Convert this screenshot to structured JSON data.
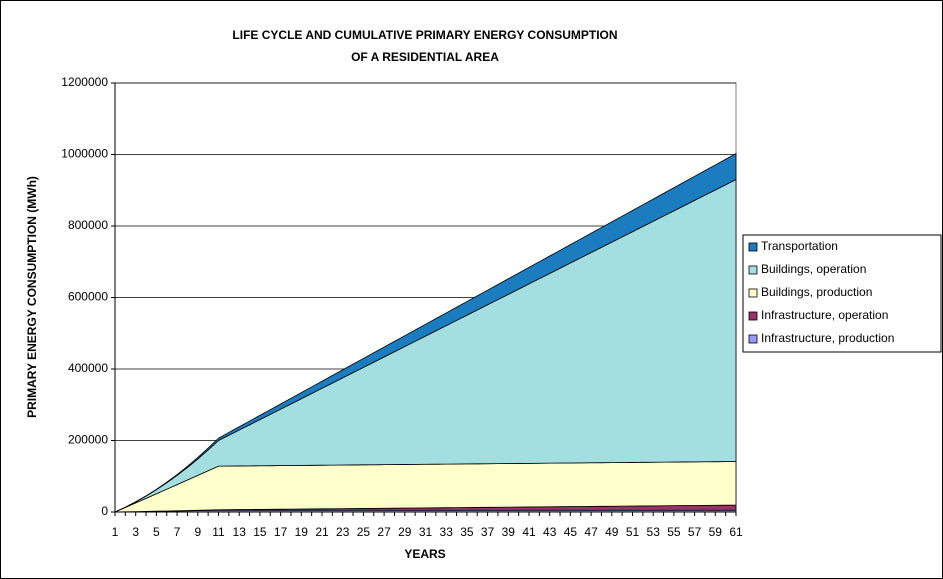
{
  "chart_data": {
    "type": "stacked_area",
    "title": "LIFE CYCLE AND CUMULATIVE PRIMARY ENERGY CONSUMPTION",
    "subtitle": "OF A RESIDENTIAL AREA",
    "x_label": "YEARS",
    "y_label": "PRIMARY ENERGY CONSUMPTION (MWh)",
    "categories": [
      1,
      null,
      3,
      null,
      5,
      null,
      7,
      null,
      9,
      null,
      11,
      null,
      13,
      null,
      15,
      null,
      17,
      null,
      19,
      null,
      21,
      null,
      23,
      null,
      25,
      null,
      27,
      null,
      29,
      null,
      31,
      null,
      33,
      null,
      35,
      null,
      37,
      null,
      39,
      null,
      41,
      null,
      43,
      null,
      45,
      null,
      47,
      null,
      49,
      null,
      51,
      null,
      53,
      null,
      55,
      null,
      57,
      null,
      59,
      null,
      61
    ],
    "ylim": [
      0,
      1200000
    ],
    "yticks": [
      0,
      200000,
      400000,
      600000,
      800000,
      1000000,
      1200000
    ],
    "grid": true,
    "legend": "right",
    "series": [
      {
        "name": "Infrastructure, production",
        "color": "#9999ff",
        "values": [
          0,
          500,
          1000,
          1500,
          2000,
          2500,
          3000,
          3500,
          4000,
          4500,
          5000,
          5000,
          5000,
          5000,
          5000,
          5000,
          5000,
          5000,
          5000,
          5000,
          5000,
          5000,
          5000,
          5000,
          5000,
          5000,
          5000,
          5000,
          5000,
          5000,
          5000,
          5000,
          5000,
          5000,
          5000,
          5000,
          5000,
          5000,
          5000,
          5000,
          5000,
          5000,
          5000,
          5000,
          5000,
          5000,
          5000,
          5000,
          5000,
          5000,
          5000,
          5000,
          5000,
          5000,
          5000,
          5000,
          5000,
          5000,
          5000,
          5000,
          5000
        ]
      },
      {
        "name": "Infrastructure, operation",
        "color": "#993366",
        "values": [
          0,
          13,
          52,
          117,
          208,
          325,
          468,
          637,
          832,
          1053,
          1300,
          1560,
          1820,
          2080,
          2340,
          2600,
          2860,
          3120,
          3380,
          3640,
          3900,
          4160,
          4420,
          4680,
          4940,
          5200,
          5460,
          5720,
          5980,
          6240,
          6500,
          6760,
          7020,
          7280,
          7540,
          7800,
          8060,
          8320,
          8580,
          8840,
          9100,
          9360,
          9620,
          9880,
          10140,
          10400,
          10660,
          10920,
          11180,
          11440,
          11700,
          11960,
          12220,
          12480,
          12740,
          13000,
          13260,
          13520,
          13780,
          14040,
          14300
        ]
      },
      {
        "name": "Buildings, production",
        "color": "#ffffcc",
        "values": [
          0,
          12200,
          24400,
          36600,
          48800,
          61000,
          73200,
          85400,
          97600,
          109800,
          122000,
          122000,
          122000,
          122000,
          122000,
          122000,
          122000,
          122000,
          122000,
          122000,
          122000,
          122000,
          122000,
          122000,
          122000,
          122000,
          122000,
          122000,
          122000,
          122000,
          122000,
          122000,
          122000,
          122000,
          122000,
          122000,
          122000,
          122000,
          122000,
          122000,
          122000,
          122000,
          122000,
          122000,
          122000,
          122000,
          122000,
          122000,
          122000,
          122000,
          122000,
          122000,
          122000,
          122000,
          122000,
          122000,
          122000,
          122000,
          122000,
          122000,
          122000
        ]
      },
      {
        "name": "Buildings, operation",
        "color": "#a3dfe0",
        "values": [
          0,
          717,
          2868,
          6453,
          11472,
          17925,
          25812,
          35133,
          45888,
          58077,
          71700,
          86040,
          100380,
          114720,
          129060,
          143400,
          157740,
          172080,
          186420,
          200760,
          215100,
          229440,
          243780,
          258120,
          272460,
          286800,
          301140,
          315480,
          329820,
          344160,
          358500,
          372840,
          387180,
          401520,
          415860,
          430200,
          444540,
          458880,
          473220,
          487560,
          501900,
          516240,
          530580,
          544920,
          559260,
          573600,
          587940,
          602280,
          616620,
          630960,
          645300,
          659640,
          673980,
          688320,
          702660,
          717000,
          731340,
          745680,
          760020,
          774360,
          788700
        ]
      },
      {
        "name": "Transportation",
        "color": "#1b7cc0",
        "values": [
          0,
          66,
          264,
          594,
          1056,
          1650,
          2376,
          3234,
          4224,
          5346,
          6600,
          7920,
          9240,
          10560,
          11880,
          13200,
          14520,
          15840,
          17160,
          18480,
          19800,
          21120,
          22440,
          23760,
          25080,
          26400,
          27720,
          29040,
          30360,
          31680,
          33000,
          34320,
          35640,
          36960,
          38280,
          39600,
          40920,
          42240,
          43560,
          44880,
          46200,
          47520,
          48840,
          50160,
          51480,
          52800,
          54120,
          55440,
          56760,
          58080,
          59400,
          60720,
          62040,
          63360,
          64680,
          66000,
          67320,
          68640,
          69960,
          71280,
          72600
        ]
      }
    ]
  }
}
